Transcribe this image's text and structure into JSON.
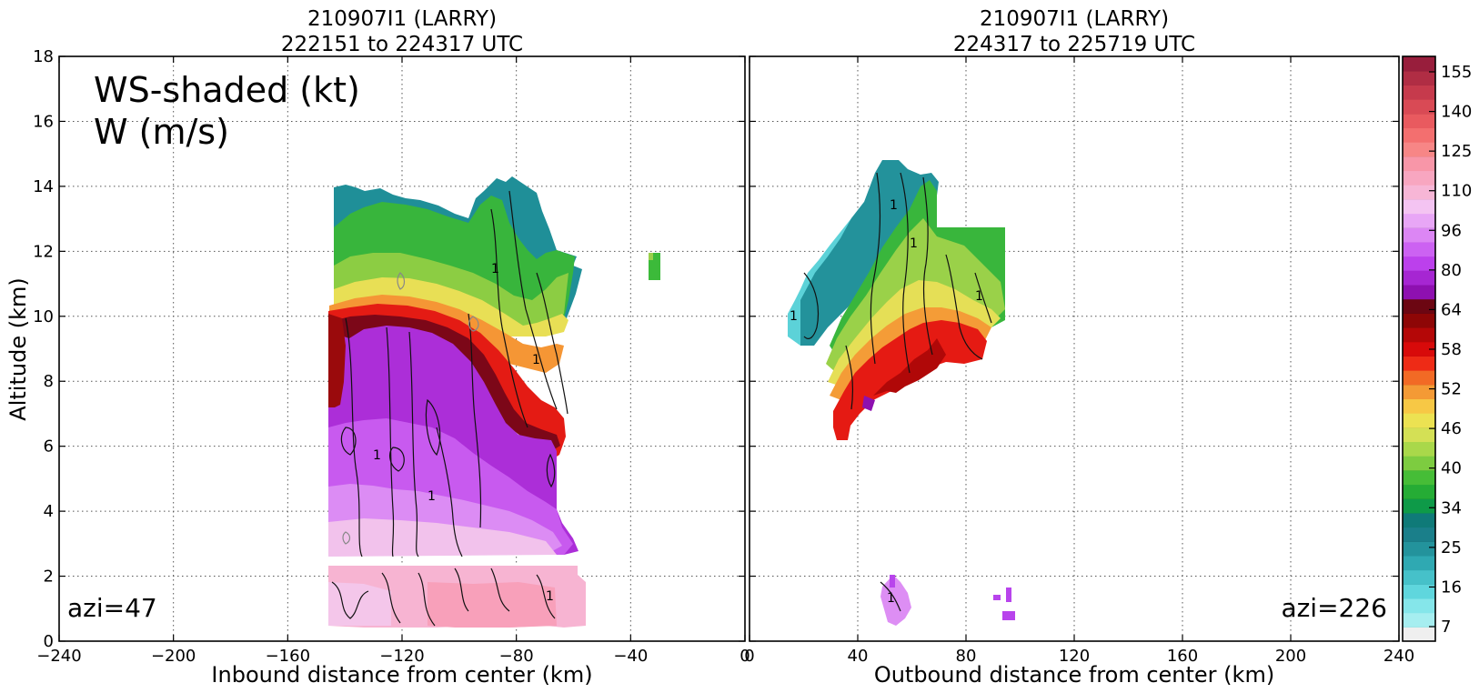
{
  "chart_data": [
    {
      "type": "heatmap",
      "panel": "left",
      "title_line1": "210907I1 (LARRY)",
      "title_line2": "222151 to 224317 UTC",
      "xlabel": "Inbound distance from center (km)",
      "ylabel": "Altitude (km)",
      "xlim": [
        -240,
        0
      ],
      "ylim": [
        0,
        18
      ],
      "xticks": [
        "−240",
        "−200",
        "−160",
        "−120",
        "−80",
        "−40",
        "0"
      ],
      "xtick_values": [
        -240,
        -200,
        -160,
        -120,
        -80,
        -40,
        0
      ],
      "yticks": [
        "0",
        "2",
        "4",
        "6",
        "8",
        "10",
        "12",
        "14",
        "16",
        "18"
      ],
      "ytick_values": [
        0,
        2,
        4,
        6,
        8,
        10,
        12,
        14,
        16,
        18
      ],
      "grid": true,
      "legend_line1": "WS-shaded (kt)",
      "legend_line2": "W (m/s)",
      "azi_label": "azi=47",
      "contour_label": "1"
    },
    {
      "type": "heatmap",
      "panel": "right",
      "title_line1": "210907I1 (LARRY)",
      "title_line2": "224317 to 225719 UTC",
      "xlabel": "Outbound distance from center (km)",
      "xlim": [
        0,
        240
      ],
      "ylim": [
        0,
        18
      ],
      "xticks": [
        "0",
        "40",
        "80",
        "120",
        "160",
        "200",
        "240"
      ],
      "xtick_values": [
        0,
        40,
        80,
        120,
        160,
        200,
        240
      ],
      "grid": true,
      "azi_label": "azi=226",
      "contour_label": "1"
    }
  ],
  "colorbar": {
    "labels": [
      "7",
      "16",
      "25",
      "34",
      "40",
      "46",
      "52",
      "58",
      "64",
      "80",
      "96",
      "110",
      "125",
      "140",
      "155"
    ],
    "label_levels": [
      7,
      16,
      25,
      34,
      40,
      46,
      52,
      58,
      64,
      80,
      96,
      110,
      125,
      140,
      155
    ],
    "colors": [
      "#efefef",
      "#a6eef0",
      "#85e6ea",
      "#5fd6dd",
      "#46c1c9",
      "#2fa9b2",
      "#23939c",
      "#1a7f8a",
      "#0f7a78",
      "#0e9a48",
      "#25ac35",
      "#46bd37",
      "#7dcc40",
      "#a9d84a",
      "#d4e055",
      "#ece252",
      "#f7c845",
      "#f49a35",
      "#f26a25",
      "#ee2b16",
      "#d80a0a",
      "#b40707",
      "#8e0606",
      "#6c0612",
      "#8e10b0",
      "#a626d2",
      "#bc40ec",
      "#cc62f2",
      "#dc86f4",
      "#e8a6f6",
      "#f4c4f2",
      "#f7b6d6",
      "#f8a6c0",
      "#f896a8",
      "#f78686",
      "#f36f6f",
      "#e95a5f",
      "#d94a55",
      "#c63a4c",
      "#b02d44",
      "#981e3c"
    ]
  },
  "colors": {
    "teal": "#1f8f98",
    "green": "#35b53c",
    "yellow": "#e0df58",
    "red": "#e21a13",
    "darkred": "#7a0616",
    "purple": "#a92ed6",
    "pink": "#f6b2d8"
  }
}
